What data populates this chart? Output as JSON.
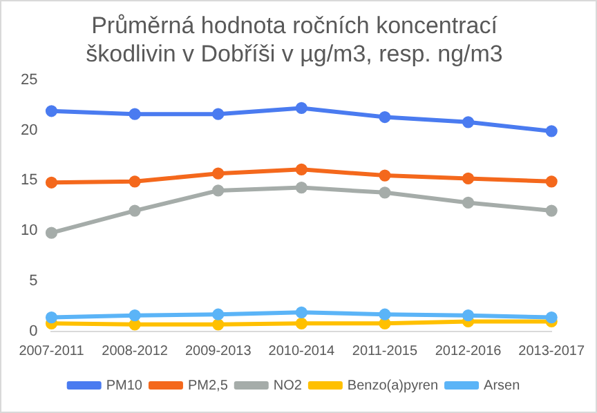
{
  "chart_data": {
    "type": "line",
    "title": "Průměrná hodnota ročních koncentrací\nškodlivin v Dobříši v µg/m3, resp. ng/m3",
    "categories": [
      "2007-2011",
      "2008-2012",
      "2009-2013",
      "2010-2014",
      "2011-2015",
      "2012-2016",
      "2013-2017"
    ],
    "series": [
      {
        "name": "PM10",
        "color": "#4a7bf0",
        "values": [
          21.9,
          21.6,
          21.6,
          22.2,
          21.3,
          20.8,
          19.9
        ]
      },
      {
        "name": "PM2,5",
        "color": "#f4681c",
        "values": [
          14.8,
          14.9,
          15.7,
          16.1,
          15.5,
          15.2,
          14.9
        ]
      },
      {
        "name": "NO2",
        "color": "#a5aca9",
        "values": [
          9.8,
          12,
          14,
          14.3,
          13.8,
          12.8,
          12
        ]
      },
      {
        "name": "Benzo(a)pyren",
        "color": "#ffc000",
        "values": [
          0.8,
          0.7,
          0.7,
          0.8,
          0.8,
          1.0,
          1.0
        ]
      },
      {
        "name": "Arsen",
        "color": "#5bb4f7",
        "values": [
          1.4,
          1.6,
          1.7,
          1.9,
          1.7,
          1.6,
          1.4
        ]
      }
    ],
    "ylim": [
      0,
      25
    ],
    "yticks": [
      0,
      5,
      10,
      15,
      20,
      25
    ],
    "grid": false,
    "legend": "bottom",
    "marker": "circle",
    "line_style": "solid"
  }
}
